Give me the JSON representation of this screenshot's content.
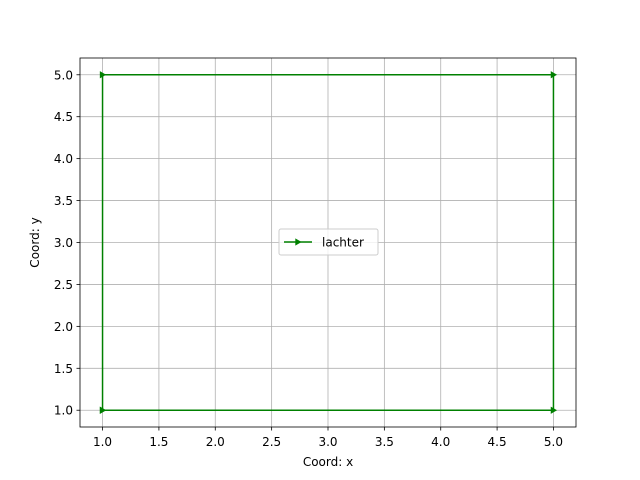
{
  "chart_data": {
    "type": "line",
    "title": "",
    "xlabel": "Coord: x",
    "ylabel": "Coord: y",
    "xlim": [
      0.8,
      5.2
    ],
    "ylim": [
      0.8,
      5.2
    ],
    "x_ticks": [
      "1.0",
      "1.5",
      "2.0",
      "2.5",
      "3.0",
      "3.5",
      "4.0",
      "4.5",
      "5.0"
    ],
    "y_ticks": [
      "1.0",
      "1.5",
      "2.0",
      "2.5",
      "3.0",
      "3.5",
      "4.0",
      "4.5",
      "5.0"
    ],
    "grid": true,
    "legend_position": "center",
    "series": [
      {
        "name": "lachter",
        "color": "#008000",
        "marker": "triangle-right",
        "x": [
          1,
          5,
          5,
          1,
          1
        ],
        "y": [
          1,
          1,
          5,
          5,
          1
        ]
      }
    ]
  }
}
